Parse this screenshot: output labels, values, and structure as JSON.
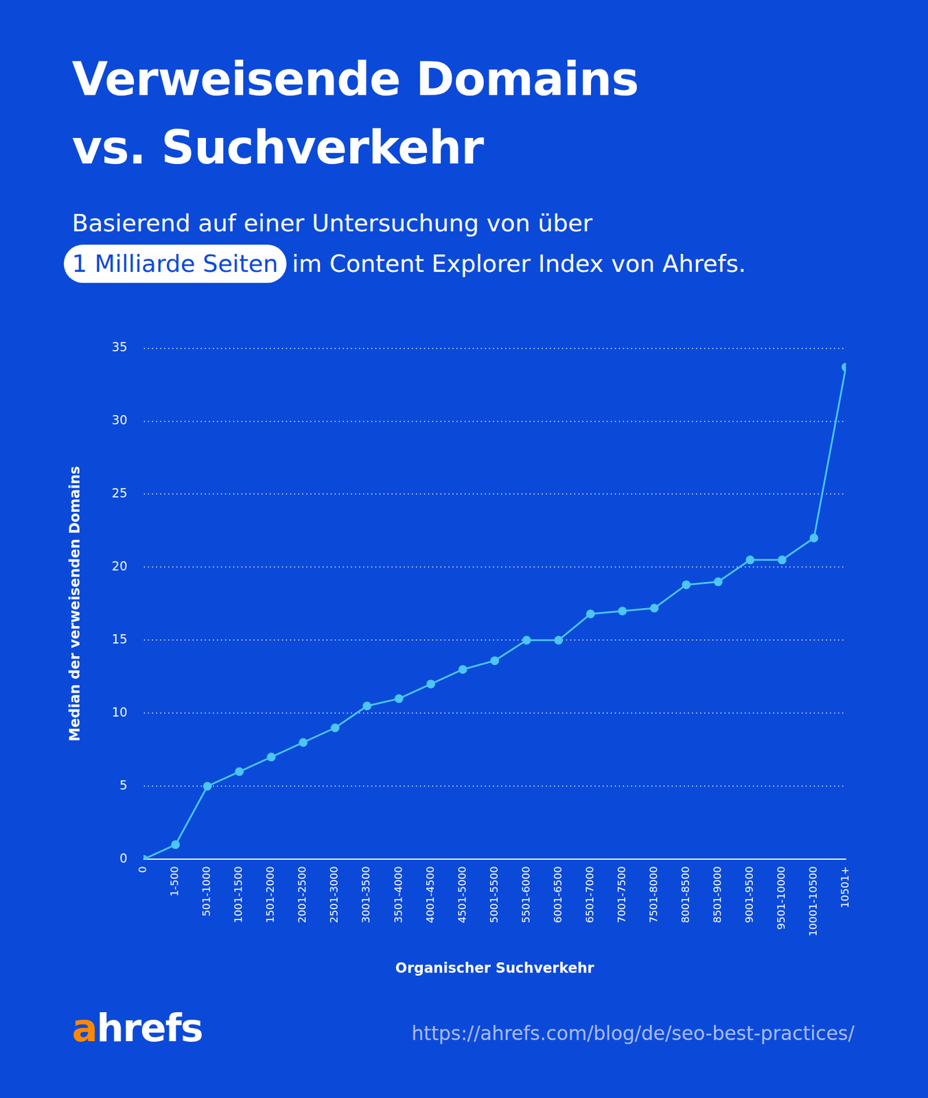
{
  "chart_data": {
    "type": "line",
    "title": [
      "Verweisende Domains",
      "vs. Suchverkehr"
    ],
    "subtitle": [
      "Basierend auf einer Untersuchung von über",
      "1 Milliarde Seiten",
      "im Content Explorer Index von Ahrefs."
    ],
    "x_label": "Organischer Suchverkehr",
    "y_label": "Median der verweisenden Domains",
    "categories": [
      "0",
      "1-500",
      "501-1000",
      "1001-1500",
      "1501-2000",
      "2001-2500",
      "2501-3000",
      "3001-3500",
      "3501-4000",
      "4001-4500",
      "4501-5000",
      "5001-5500",
      "5501-6000",
      "6001-6500",
      "6501-7000",
      "7001-7500",
      "7501-8000",
      "8001-8500",
      "8501-9000",
      "9001-9500",
      "9501-10000",
      "10001-10500",
      "10501+"
    ],
    "values": [
      0,
      1,
      5,
      6,
      7,
      8,
      9,
      10.5,
      11,
      12,
      13,
      13.6,
      15,
      15,
      16.8,
      17,
      17.2,
      18.8,
      19,
      20.5,
      20.5,
      22,
      33.7
    ],
    "color": "#4cc6f5",
    "marker": "circle",
    "ylim": [
      0,
      35
    ],
    "yticks": [
      0,
      5,
      10,
      15,
      20,
      25,
      30,
      35
    ],
    "grid": true
  },
  "logo": "ahrefs",
  "source": "https://ahrefs.com/blog/de/seo-best-practices/"
}
